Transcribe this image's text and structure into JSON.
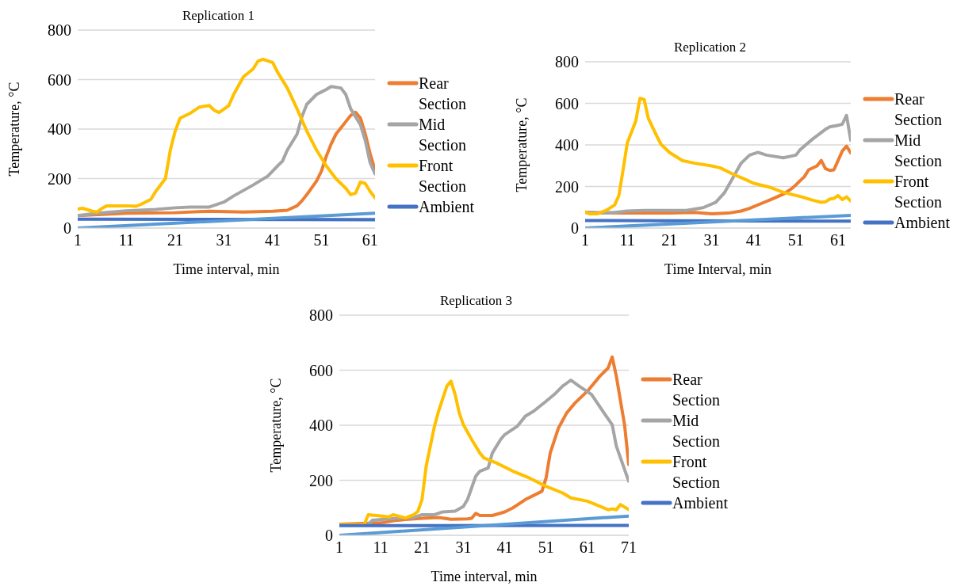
{
  "chart_data": [
    {
      "type": "line",
      "title": "Replication 1",
      "xlabel": "Time interval, min",
      "ylabel": "Temperature, °C",
      "xlim": [
        1,
        62
      ],
      "xticks": [
        1,
        11,
        21,
        31,
        41,
        51,
        61
      ],
      "ylim": [
        0,
        800
      ],
      "yticks": [
        0,
        200,
        400,
        600,
        800
      ],
      "grid": "y",
      "legend": "right",
      "marker": "none",
      "line_style": "solid",
      "series": [
        {
          "name": "Rear Section",
          "color": "#ed7d31",
          "x": [
            1,
            11,
            21,
            28,
            35,
            41,
            44,
            46,
            47,
            48,
            50,
            51,
            52,
            53,
            54,
            56,
            57,
            58,
            59,
            60,
            61,
            62
          ],
          "values": [
            50,
            60,
            62,
            68,
            65,
            68,
            72,
            90,
            110,
            135,
            190,
            230,
            290,
            340,
            380,
            430,
            455,
            468,
            445,
            380,
            300,
            235
          ]
        },
        {
          "name": "Mid Section",
          "color": "#a5a5a5",
          "x": [
            1,
            5,
            11,
            17,
            21,
            24,
            28,
            31,
            33,
            37,
            40,
            42,
            43,
            44,
            46,
            47,
            48,
            50,
            51,
            52,
            53,
            55,
            56,
            57,
            59,
            60,
            61,
            62
          ],
          "values": [
            50,
            60,
            70,
            75,
            82,
            85,
            85,
            105,
            130,
            174,
            210,
            251,
            270,
            315,
            379,
            450,
            500,
            540,
            550,
            560,
            572,
            566,
            540,
            482,
            418,
            354,
            264,
            219
          ]
        },
        {
          "name": "Front Section",
          "color": "#ffc000",
          "x": [
            1,
            2,
            4,
            5,
            6,
            7,
            11,
            13,
            14,
            16,
            17,
            19,
            20,
            21,
            22,
            24,
            26,
            28,
            29,
            30,
            32,
            33,
            35,
            37,
            38,
            39,
            41,
            42,
            44,
            46,
            48,
            50,
            52,
            54,
            56,
            57,
            58,
            59,
            60,
            61,
            62
          ],
          "values": [
            77,
            80,
            68,
            65,
            80,
            90,
            90,
            88,
            96,
            116,
            148,
            200,
            315,
            392,
            444,
            463,
            489,
            495,
            476,
            467,
            495,
            540,
            611,
            643,
            675,
            682,
            669,
            630,
            566,
            482,
            392,
            315,
            251,
            199,
            161,
            135,
            141,
            186,
            180,
            148,
            122
          ]
        },
        {
          "name": "Ambient",
          "color": "#4472c4",
          "x": [
            1,
            62
          ],
          "values": [
            36,
            34
          ]
        },
        {
          "type": "line",
          "color": "#5b9bd5",
          "x": [
            1,
            62
          ],
          "values": [
            0,
            60
          ]
        }
      ]
    },
    {
      "type": "line",
      "title": "Replication 2",
      "xlabel": "Time Interval, min",
      "ylabel": "Temperature, °C",
      "xlim": [
        1,
        64
      ],
      "xticks": [
        1,
        11,
        21,
        31,
        41,
        51,
        61
      ],
      "ylim": [
        0,
        800
      ],
      "yticks": [
        0,
        200,
        400,
        600,
        800
      ],
      "grid": "y",
      "legend": "right",
      "marker": "none",
      "line_style": "solid",
      "series": [
        {
          "name": "Rear Section",
          "color": "#ed7d31",
          "x": [
            1,
            11,
            21,
            27,
            31,
            35,
            38,
            40,
            43,
            45,
            48,
            50,
            51,
            52,
            53,
            54,
            56,
            57,
            58,
            59,
            60,
            62,
            63,
            64
          ],
          "values": [
            75,
            72,
            72,
            75,
            69,
            72,
            82,
            95,
            120,
            137,
            163,
            190,
            208,
            228,
            247,
            280,
            299,
            325,
            286,
            277,
            280,
            371,
            394,
            361
          ]
        },
        {
          "name": "Mid Section",
          "color": "#a5a5a5",
          "x": [
            1,
            4,
            8,
            11,
            15,
            21,
            25,
            29,
            32,
            34,
            36,
            38,
            40,
            42,
            44,
            48,
            51,
            52,
            55,
            58,
            59,
            61,
            62,
            63,
            64
          ],
          "values": [
            75,
            72,
            75,
            82,
            85,
            85,
            85,
            98,
            124,
            169,
            240,
            312,
            351,
            364,
            351,
            338,
            351,
            377,
            429,
            475,
            487,
            494,
            500,
            542,
            422
          ]
        },
        {
          "name": "Front Section",
          "color": "#ffc000",
          "x": [
            1,
            2,
            4,
            6,
            8,
            9,
            10,
            11,
            13,
            14,
            15,
            16,
            18,
            19,
            21,
            23,
            24,
            27,
            31,
            33,
            36,
            39,
            41,
            45,
            48,
            52,
            55,
            57,
            58,
            59,
            60,
            61,
            62,
            63,
            64
          ],
          "values": [
            78,
            69,
            69,
            85,
            111,
            156,
            280,
            410,
            514,
            624,
            618,
            527,
            442,
            403,
            364,
            338,
            325,
            312,
            299,
            290,
            260,
            234,
            215,
            195,
            172,
            152,
            134,
            124,
            126,
            139,
            143,
            156,
            137,
            150,
            130
          ]
        },
        {
          "name": "Ambient",
          "color": "#4472c4",
          "x": [
            1,
            64
          ],
          "values": [
            36,
            33
          ]
        },
        {
          "type": "line",
          "color": "#5b9bd5",
          "x": [
            1,
            64
          ],
          "values": [
            0,
            61
          ]
        }
      ]
    },
    {
      "type": "line",
      "title": "Replication 3",
      "xlabel": "Time interval, min",
      "ylabel": "Temperature, °C",
      "xlim": [
        1,
        71
      ],
      "xticks": [
        1,
        11,
        21,
        31,
        41,
        51,
        61,
        71
      ],
      "ylim": [
        0,
        800
      ],
      "yticks": [
        0,
        200,
        400,
        600,
        800
      ],
      "grid": "y",
      "legend": "right",
      "marker": "none",
      "line_style": "solid",
      "series": [
        {
          "name": "Rear Section",
          "color": "#ed7d31",
          "x": [
            1,
            11,
            15,
            21,
            25,
            28,
            32,
            33,
            34,
            35,
            38,
            41,
            43,
            46,
            48,
            50,
            51,
            52,
            54,
            56,
            58,
            61,
            64,
            66,
            67,
            68,
            70,
            71
          ],
          "values": [
            40,
            45,
            55,
            62,
            65,
            58,
            60,
            62,
            80,
            72,
            72,
            85,
            100,
            130,
            145,
            160,
            208,
            299,
            390,
            445,
            481,
            524,
            578,
            608,
            648,
            578,
            400,
            257
          ]
        },
        {
          "name": "Mid Section",
          "color": "#a5a5a5",
          "x": [
            8,
            9,
            13,
            19,
            21,
            24,
            26,
            29,
            31,
            32,
            34,
            35,
            37,
            38,
            40,
            41,
            44,
            46,
            48,
            51,
            53,
            55,
            57,
            59,
            62,
            65,
            67,
            68,
            71
          ],
          "values": [
            40,
            55,
            60,
            65,
            75,
            75,
            85,
            88,
            105,
            130,
            215,
            233,
            245,
            299,
            348,
            366,
            396,
            433,
            451,
            487,
            512,
            542,
            564,
            542,
            512,
            445,
            402,
            324,
            196
          ]
        },
        {
          "name": "Front Section",
          "color": "#ffc000",
          "x": [
            1,
            7,
            8,
            10,
            13,
            14,
            16,
            17,
            19,
            20,
            21,
            22,
            24,
            25,
            27,
            28,
            29,
            30,
            31,
            33,
            35,
            36,
            39,
            43,
            47,
            51,
            55,
            57,
            61,
            63,
            66,
            67,
            68,
            69,
            71
          ],
          "values": [
            39,
            39,
            75,
            72,
            67,
            75,
            67,
            63,
            75,
            87,
            130,
            251,
            396,
            451,
            542,
            560,
            512,
            445,
            402,
            348,
            299,
            281,
            263,
            233,
            208,
            178,
            154,
            136,
            124,
            112,
            93,
            96,
            93,
            112,
            93
          ]
        },
        {
          "name": "Ambient",
          "color": "#4472c4",
          "x": [
            1,
            71
          ],
          "values": [
            35,
            36
          ]
        },
        {
          "type": "line",
          "color": "#5b9bd5",
          "x": [
            1,
            71
          ],
          "values": [
            0,
            70
          ]
        }
      ]
    }
  ]
}
